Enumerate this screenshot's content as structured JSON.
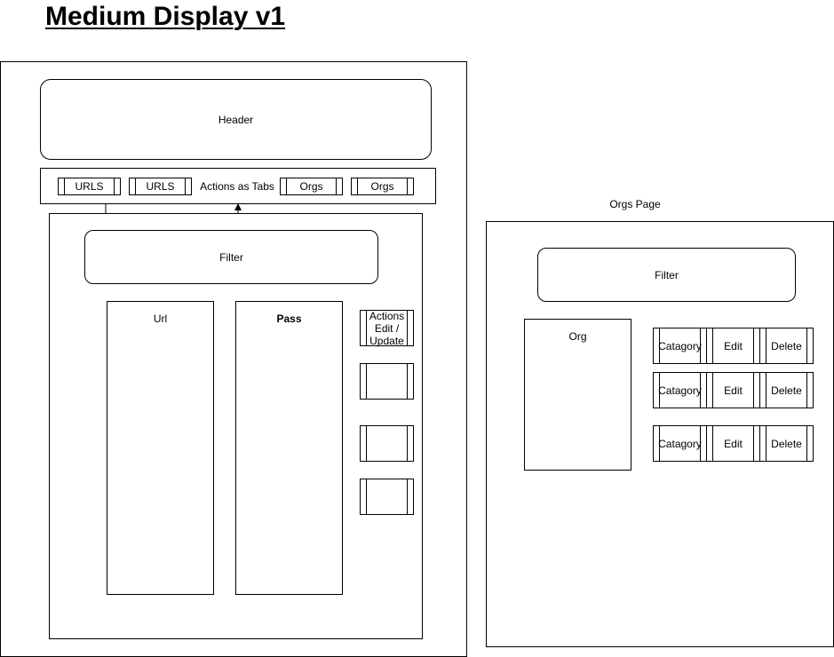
{
  "title": "Medium Display v1",
  "main": {
    "header": "Header",
    "tab_bar": {
      "tabs": [
        "URLS",
        "URLS",
        "Orgs",
        "Orgs"
      ],
      "label": "Actions as Tabs"
    },
    "content": {
      "filter": "Filter",
      "url_column": "Url",
      "pass_column": "Pass",
      "actions": [
        "Actions",
        "Edit /",
        "Update"
      ]
    }
  },
  "orgs": {
    "label": "Orgs Page",
    "filter": "Filter",
    "org_column": "Org",
    "rows": [
      {
        "category": "Catagory",
        "edit": "Edit",
        "delete": "Delete"
      },
      {
        "category": "Catagory",
        "edit": "Edit",
        "delete": "Delete"
      },
      {
        "category": "Catagory",
        "edit": "Edit",
        "delete": "Delete"
      }
    ]
  }
}
